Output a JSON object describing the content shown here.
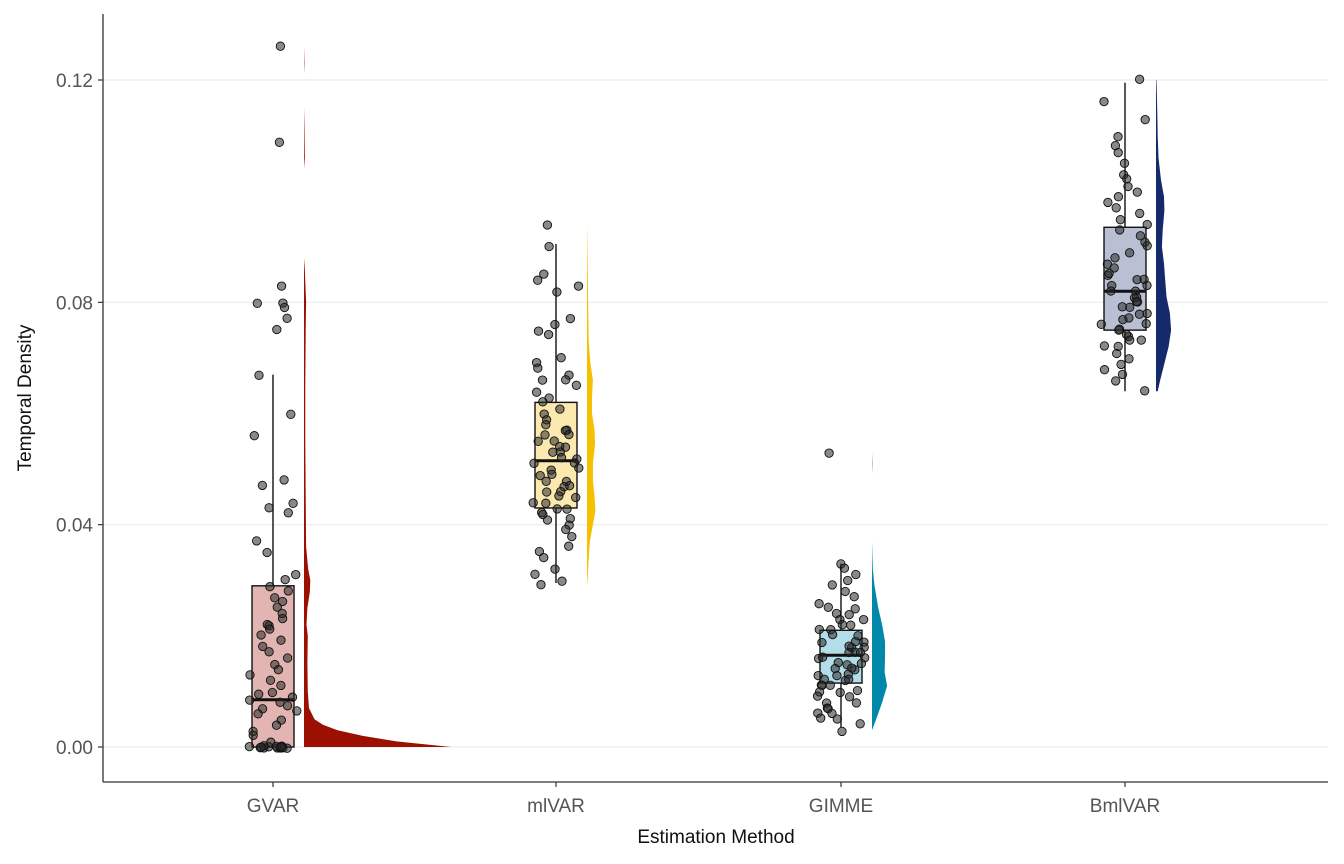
{
  "chart_data": {
    "type": "raincloud",
    "xlabel": "Estimation Method",
    "ylabel": "Temporal Density",
    "ylim": [
      -0.006,
      0.132
    ],
    "y_ticks": [
      "0.00",
      "0.04",
      "0.08",
      "0.12"
    ],
    "y_tick_values": [
      0.0,
      0.04,
      0.08,
      0.12
    ],
    "grid": "horizontal",
    "legend": "none",
    "categories": [
      "GVAR",
      "mlVAR",
      "GIMME",
      "BmlVAR"
    ],
    "groups": [
      {
        "label": "GVAR",
        "color": "#9b1000",
        "box_fill": "#e3b5b2",
        "box": {
          "min": 0.0,
          "q1": 0.0,
          "median": 0.0085,
          "q3": 0.029,
          "max": 0.067
        },
        "density": [
          [
            0.0,
            3.5
          ],
          [
            0.001,
            2.2
          ],
          [
            0.002,
            1.4
          ],
          [
            0.003,
            0.8
          ],
          [
            0.004,
            0.45
          ],
          [
            0.005,
            0.25
          ],
          [
            0.007,
            0.12
          ],
          [
            0.01,
            0.09
          ],
          [
            0.015,
            0.08
          ],
          [
            0.02,
            0.09
          ],
          [
            0.022,
            0.06
          ],
          [
            0.025,
            0.08
          ],
          [
            0.028,
            0.14
          ],
          [
            0.03,
            0.15
          ],
          [
            0.032,
            0.1
          ],
          [
            0.036,
            0.05
          ],
          [
            0.045,
            0.04
          ],
          [
            0.055,
            0.03
          ],
          [
            0.065,
            0.03
          ],
          [
            0.075,
            0.04
          ],
          [
            0.08,
            0.05
          ],
          [
            0.086,
            0.02
          ],
          [
            0.088,
            0.0
          ],
          [
            0.104,
            0.0
          ],
          [
            0.106,
            0.02
          ],
          [
            0.112,
            0.01
          ],
          [
            0.115,
            0.0
          ],
          [
            0.121,
            0.0
          ],
          [
            0.123,
            0.01
          ],
          [
            0.126,
            0.0
          ]
        ],
        "points": [
          0.126,
          0.109,
          0.083,
          0.08,
          0.08,
          0.079,
          0.077,
          0.075,
          0.067,
          0.06,
          0.056,
          0.048,
          0.047,
          0.044,
          0.043,
          0.042,
          0.037,
          0.035,
          0.031,
          0.03,
          0.029,
          0.028,
          0.027,
          0.026,
          0.025,
          0.024,
          0.023,
          0.022,
          0.022,
          0.021,
          0.02,
          0.019,
          0.018,
          0.017,
          0.016,
          0.015,
          0.014,
          0.013,
          0.012,
          0.011,
          0.01,
          0.0095,
          0.009,
          0.0085,
          0.008,
          0.0075,
          0.007,
          0.0065,
          0.006,
          0.005,
          0.004,
          0.003,
          0.002,
          0.001,
          0.0,
          0.0,
          0.0,
          0.0,
          0.0,
          0.0,
          0.0,
          0.0,
          0.0,
          0.0,
          0.0,
          0.0,
          0.0,
          0.0,
          0.0
        ]
      },
      {
        "label": "mlVAR",
        "color": "#f5c000",
        "box_fill": "#fce9b0",
        "box": {
          "min": 0.0295,
          "q1": 0.043,
          "median": 0.0515,
          "q3": 0.062,
          "max": 0.0905
        },
        "density": [
          [
            0.0295,
            0.01
          ],
          [
            0.031,
            0.02
          ],
          [
            0.034,
            0.04
          ],
          [
            0.037,
            0.07
          ],
          [
            0.04,
            0.14
          ],
          [
            0.0425,
            0.2
          ],
          [
            0.045,
            0.18
          ],
          [
            0.048,
            0.14
          ],
          [
            0.051,
            0.14
          ],
          [
            0.0545,
            0.19
          ],
          [
            0.057,
            0.18
          ],
          [
            0.06,
            0.12
          ],
          [
            0.063,
            0.12
          ],
          [
            0.066,
            0.14
          ],
          [
            0.069,
            0.08
          ],
          [
            0.073,
            0.04
          ],
          [
            0.078,
            0.03
          ],
          [
            0.084,
            0.02
          ],
          [
            0.09,
            0.01
          ],
          [
            0.094,
            0.0
          ]
        ],
        "points": [
          0.094,
          0.09,
          0.085,
          0.084,
          0.083,
          0.082,
          0.077,
          0.076,
          0.075,
          0.074,
          0.07,
          0.069,
          0.068,
          0.067,
          0.066,
          0.066,
          0.065,
          0.064,
          0.063,
          0.062,
          0.061,
          0.06,
          0.059,
          0.058,
          0.057,
          0.057,
          0.056,
          0.056,
          0.055,
          0.055,
          0.054,
          0.054,
          0.053,
          0.053,
          0.052,
          0.052,
          0.051,
          0.051,
          0.05,
          0.05,
          0.049,
          0.049,
          0.048,
          0.048,
          0.047,
          0.047,
          0.046,
          0.046,
          0.045,
          0.045,
          0.044,
          0.044,
          0.043,
          0.043,
          0.042,
          0.042,
          0.041,
          0.041,
          0.04,
          0.039,
          0.038,
          0.036,
          0.035,
          0.034,
          0.032,
          0.031,
          0.03,
          0.029
        ]
      },
      {
        "label": "GIMME",
        "color": "#0087aa",
        "box_fill": "#b3dde9",
        "box": {
          "min": 0.0035,
          "q1": 0.0115,
          "median": 0.0165,
          "q3": 0.021,
          "max": 0.033
        },
        "density": [
          [
            0.003,
            0.0
          ],
          [
            0.005,
            0.1
          ],
          [
            0.008,
            0.24
          ],
          [
            0.011,
            0.36
          ],
          [
            0.0135,
            0.3
          ],
          [
            0.016,
            0.31
          ],
          [
            0.019,
            0.31
          ],
          [
            0.022,
            0.24
          ],
          [
            0.025,
            0.15
          ],
          [
            0.029,
            0.06
          ],
          [
            0.032,
            0.02
          ],
          [
            0.0345,
            0.01
          ],
          [
            0.037,
            0.0
          ],
          [
            0.049,
            0.0
          ],
          [
            0.051,
            0.01
          ],
          [
            0.053,
            0.0
          ]
        ],
        "points": [
          0.053,
          0.033,
          0.032,
          0.031,
          0.03,
          0.029,
          0.028,
          0.027,
          0.026,
          0.025,
          0.025,
          0.024,
          0.024,
          0.023,
          0.023,
          0.022,
          0.022,
          0.021,
          0.021,
          0.02,
          0.02,
          0.019,
          0.019,
          0.019,
          0.018,
          0.018,
          0.018,
          0.017,
          0.017,
          0.017,
          0.016,
          0.016,
          0.016,
          0.015,
          0.015,
          0.015,
          0.014,
          0.014,
          0.014,
          0.013,
          0.013,
          0.013,
          0.012,
          0.012,
          0.012,
          0.011,
          0.011,
          0.011,
          0.01,
          0.01,
          0.01,
          0.009,
          0.009,
          0.008,
          0.008,
          0.007,
          0.007,
          0.006,
          0.006,
          0.005,
          0.005,
          0.004,
          0.003
        ]
      },
      {
        "label": "BmlVAR",
        "color": "#152a6a",
        "box_fill": "#b9c0d4",
        "box": {
          "min": 0.064,
          "q1": 0.075,
          "median": 0.082,
          "q3": 0.0935,
          "max": 0.1195
        },
        "density": [
          [
            0.064,
            0.04
          ],
          [
            0.066,
            0.1
          ],
          [
            0.069,
            0.2
          ],
          [
            0.072,
            0.3
          ],
          [
            0.075,
            0.36
          ],
          [
            0.078,
            0.33
          ],
          [
            0.081,
            0.25
          ],
          [
            0.084,
            0.22
          ],
          [
            0.087,
            0.19
          ],
          [
            0.09,
            0.14
          ],
          [
            0.093,
            0.16
          ],
          [
            0.0965,
            0.2
          ],
          [
            0.099,
            0.19
          ],
          [
            0.102,
            0.12
          ],
          [
            0.106,
            0.06
          ],
          [
            0.11,
            0.04
          ],
          [
            0.114,
            0.03
          ],
          [
            0.118,
            0.02
          ],
          [
            0.12,
            0.01
          ]
        ],
        "points": [
          0.12,
          0.116,
          0.113,
          0.11,
          0.108,
          0.107,
          0.105,
          0.103,
          0.102,
          0.101,
          0.1,
          0.099,
          0.098,
          0.097,
          0.096,
          0.095,
          0.094,
          0.093,
          0.092,
          0.091,
          0.09,
          0.089,
          0.088,
          0.087,
          0.086,
          0.085,
          0.085,
          0.084,
          0.084,
          0.083,
          0.083,
          0.082,
          0.082,
          0.081,
          0.081,
          0.08,
          0.08,
          0.079,
          0.079,
          0.078,
          0.078,
          0.077,
          0.077,
          0.076,
          0.076,
          0.075,
          0.075,
          0.074,
          0.074,
          0.073,
          0.073,
          0.072,
          0.072,
          0.071,
          0.07,
          0.069,
          0.068,
          0.067,
          0.066,
          0.064
        ]
      }
    ]
  }
}
